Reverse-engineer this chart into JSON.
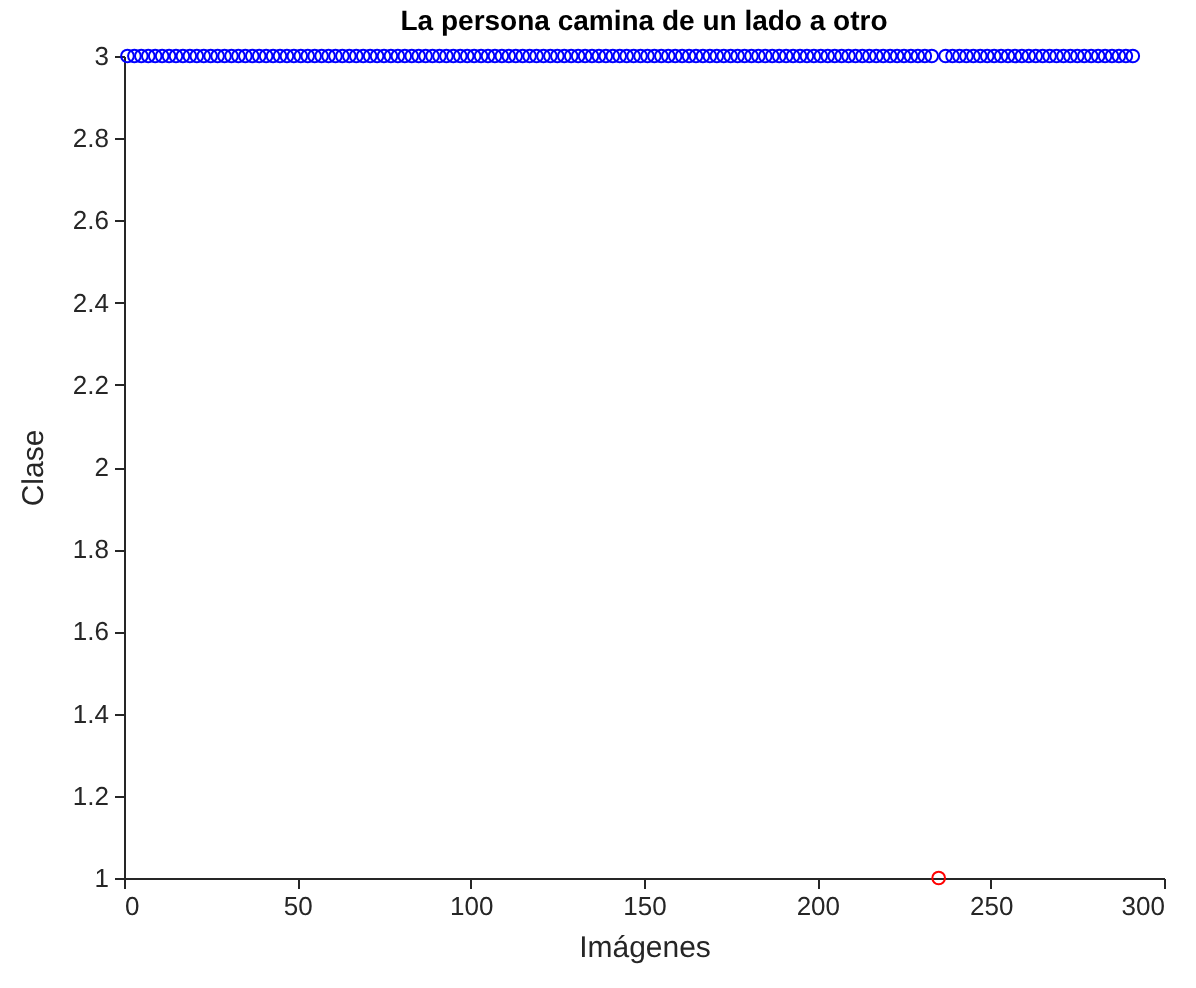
{
  "chart_data": {
    "type": "scatter",
    "title": "La persona camina de un lado a otro",
    "xlabel": "Imágenes",
    "ylabel": "Clase",
    "xlim": [
      0,
      300
    ],
    "xticks": [
      0,
      50,
      100,
      150,
      200,
      250,
      300
    ],
    "ylim": [
      1,
      3
    ],
    "yticks": [
      1,
      1.2,
      1.4,
      1.6,
      1.8,
      2,
      2.2,
      2.4,
      2.6,
      2.8,
      3
    ],
    "marker": "circle",
    "grid": false,
    "series": [
      {
        "color": "#0000ff",
        "x": [
          1,
          3,
          5,
          7,
          9,
          11,
          13,
          15,
          17,
          19,
          21,
          23,
          25,
          27,
          29,
          31,
          33,
          35,
          37,
          39,
          41,
          43,
          45,
          47,
          49,
          51,
          53,
          55,
          57,
          59,
          61,
          63,
          65,
          67,
          69,
          71,
          73,
          75,
          77,
          79,
          81,
          83,
          85,
          87,
          89,
          91,
          93,
          95,
          97,
          99,
          101,
          103,
          105,
          107,
          109,
          111,
          113,
          115,
          117,
          119,
          121,
          123,
          125,
          127,
          129,
          131,
          133,
          135,
          137,
          139,
          141,
          143,
          145,
          147,
          149,
          151,
          153,
          155,
          157,
          159,
          161,
          163,
          165,
          167,
          169,
          171,
          173,
          175,
          177,
          179,
          181,
          183,
          185,
          187,
          189,
          191,
          193,
          195,
          197,
          199,
          201,
          203,
          205,
          207,
          209,
          211,
          213,
          215,
          217,
          219,
          221,
          223,
          225,
          227,
          229,
          231,
          233,
          237,
          239,
          241,
          243,
          245,
          247,
          249,
          251,
          253,
          255,
          257,
          259,
          261,
          263,
          265,
          267,
          269,
          271,
          273,
          275,
          277,
          279,
          281,
          283,
          285,
          287,
          289,
          291
        ],
        "values": [
          3,
          3,
          3,
          3,
          3,
          3,
          3,
          3,
          3,
          3,
          3,
          3,
          3,
          3,
          3,
          3,
          3,
          3,
          3,
          3,
          3,
          3,
          3,
          3,
          3,
          3,
          3,
          3,
          3,
          3,
          3,
          3,
          3,
          3,
          3,
          3,
          3,
          3,
          3,
          3,
          3,
          3,
          3,
          3,
          3,
          3,
          3,
          3,
          3,
          3,
          3,
          3,
          3,
          3,
          3,
          3,
          3,
          3,
          3,
          3,
          3,
          3,
          3,
          3,
          3,
          3,
          3,
          3,
          3,
          3,
          3,
          3,
          3,
          3,
          3,
          3,
          3,
          3,
          3,
          3,
          3,
          3,
          3,
          3,
          3,
          3,
          3,
          3,
          3,
          3,
          3,
          3,
          3,
          3,
          3,
          3,
          3,
          3,
          3,
          3,
          3,
          3,
          3,
          3,
          3,
          3,
          3,
          3,
          3,
          3,
          3,
          3,
          3,
          3,
          3,
          3,
          3,
          3,
          3,
          3,
          3,
          3,
          3,
          3,
          3,
          3,
          3,
          3,
          3,
          3,
          3,
          3,
          3,
          3,
          3,
          3,
          3,
          3,
          3,
          3,
          3,
          3,
          3,
          3,
          3
        ]
      },
      {
        "color": "#ff0000",
        "x": [
          235
        ],
        "values": [
          1
        ]
      }
    ]
  }
}
